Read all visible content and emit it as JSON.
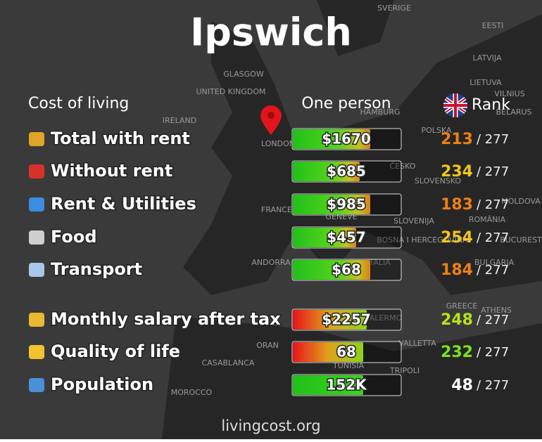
{
  "header": {
    "title": "Ipswich"
  },
  "columns": {
    "category": "Cost of living",
    "value": "One person",
    "rank": "Rank"
  },
  "rows": [
    {
      "label": "Total with rent",
      "value": "$1670",
      "rank": "213",
      "of": "/ 277"
    },
    {
      "label": "Without rent",
      "value": "$685",
      "rank": "234",
      "of": "/ 277"
    },
    {
      "label": "Rent & Utilities",
      "value": "$985",
      "rank": "183",
      "of": "/ 277"
    },
    {
      "label": "Food",
      "value": "$457",
      "rank": "254",
      "of": "/ 277"
    },
    {
      "label": "Transport",
      "value": "$68",
      "rank": "184",
      "of": "/ 277"
    },
    {
      "label": "Monthly salary after tax",
      "value": "$2257",
      "rank": "248",
      "of": "/ 277"
    },
    {
      "label": "Quality of life",
      "value": "68",
      "rank": "232",
      "of": "/ 277"
    },
    {
      "label": "Population",
      "value": "152K",
      "rank": "48",
      "of": "/ 277"
    }
  ],
  "map": {
    "labels": [
      "SVERIGE",
      "EESTI",
      "LATVIJA",
      "LIETUVA",
      "VILNIUS",
      "BELARUS",
      "IRELAND",
      "GLASGOW",
      "UNITED KINGDOM",
      "HAMBURG",
      "POLSKA",
      "LONDON",
      "ČESKO",
      "SLOVENSKO",
      "FRANCE",
      "GENEVE",
      "SLOVENIJA",
      "ROMÂNIA",
      "MOLDOVA",
      "BOSNA I HERCEGOVINA",
      "BUCUREST",
      "ANDORRA",
      "ITALIA",
      "BULGARIA",
      "GREECE",
      "ATHENS",
      "PALERMO",
      "VALLETTA",
      "ORAN",
      "TUNISIA",
      "CASABLANCA",
      "TRIPOLI",
      "MOROCCO"
    ]
  },
  "footer": {
    "site": "livingcost.org"
  }
}
